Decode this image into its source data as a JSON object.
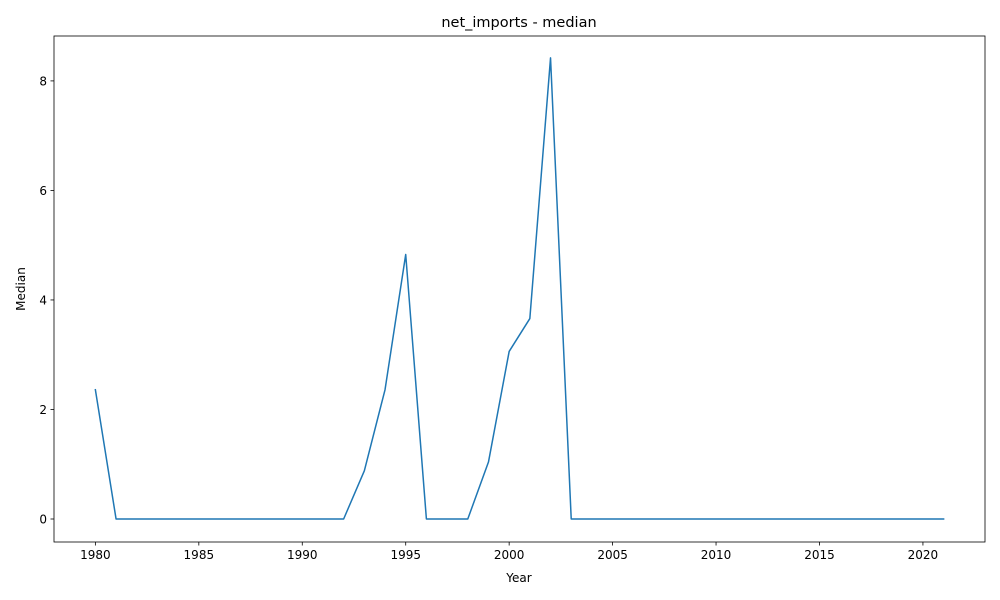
{
  "chart_data": {
    "type": "line",
    "title": "net_imports - median",
    "xlabel": "Year",
    "ylabel": "Median",
    "xlim": [
      1978,
      2023
    ],
    "ylim": [
      -0.42,
      8.82
    ],
    "xticks": [
      1980,
      1985,
      1990,
      1995,
      2000,
      2005,
      2010,
      2015,
      2020
    ],
    "yticks": [
      0,
      2,
      4,
      6,
      8
    ],
    "grid": false,
    "series": [
      {
        "color": "#1f77b4",
        "x": [
          1980,
          1981,
          1982,
          1983,
          1984,
          1985,
          1986,
          1987,
          1988,
          1989,
          1990,
          1991,
          1992,
          1993,
          1994,
          1995,
          1996,
          1997,
          1998,
          1999,
          2000,
          2001,
          2002,
          2003,
          2004,
          2005,
          2006,
          2007,
          2008,
          2009,
          2010,
          2011,
          2012,
          2013,
          2014,
          2015,
          2016,
          2017,
          2018,
          2019,
          2020,
          2021
        ],
        "values": [
          2.36,
          0,
          0,
          0,
          0,
          0,
          0,
          0,
          0,
          0,
          0,
          0,
          0,
          0.88,
          2.36,
          4.83,
          0,
          0,
          0,
          1.04,
          3.06,
          3.66,
          8.42,
          0,
          0,
          0,
          0,
          0,
          0,
          0,
          0,
          0,
          0,
          0,
          0,
          0,
          0,
          0,
          0,
          0,
          0,
          0
        ]
      }
    ]
  }
}
